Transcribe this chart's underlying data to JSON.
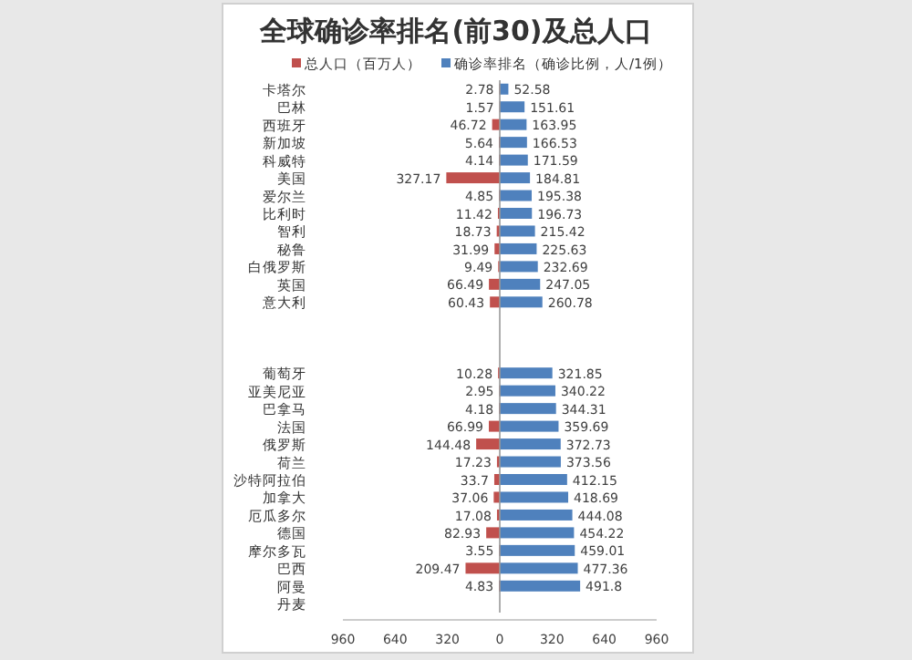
{
  "chart_data": {
    "type": "bar",
    "orientation": "horizontal",
    "title": "全球确诊率排名(前30)及总人口",
    "categories": [
      "卡塔尔",
      "巴林",
      "西班牙",
      "新加坡",
      "科威特",
      "美国",
      "爱尔兰",
      "比利时",
      "智利",
      "秘鲁",
      "白俄罗斯",
      "英国",
      "意大利",
      null,
      null,
      null,
      "葡萄牙",
      "亚美尼亚",
      "巴拿马",
      "法国",
      "俄罗斯",
      "荷兰",
      "沙特阿拉伯",
      "加拿大",
      "厄瓜多尔",
      "德国",
      "摩尔多瓦",
      "巴西",
      "阿曼",
      "丹麦"
    ],
    "series": [
      {
        "name": "总人口（百万人）",
        "color": "#c0504d",
        "axis": "x2",
        "values": [
          2.78,
          1.57,
          46.72,
          5.64,
          4.14,
          327.17,
          4.85,
          11.42,
          18.73,
          31.99,
          9.49,
          66.49,
          60.43,
          null,
          null,
          null,
          10.28,
          2.95,
          4.18,
          66.99,
          144.48,
          17.23,
          33.7,
          37.06,
          17.08,
          82.93,
          3.55,
          209.47,
          4.83,
          null
        ]
      },
      {
        "name": "确诊率排名（确诊比例，人/1例）",
        "color": "#4f81bd",
        "values": [
          52.58,
          151.61,
          163.95,
          166.53,
          171.59,
          184.81,
          195.38,
          196.73,
          215.42,
          225.63,
          232.69,
          247.05,
          260.78,
          null,
          null,
          null,
          321.85,
          340.22,
          344.31,
          359.69,
          372.73,
          373.56,
          412.15,
          418.69,
          444.08,
          454.22,
          459.01,
          477.36,
          491.8,
          null
        ]
      }
    ],
    "data_labels": true,
    "xlim": [
      -960,
      960
    ],
    "xticks": [
      0,
      320,
      640,
      960
    ],
    "x2lim": [
      960,
      -960
    ],
    "x2ticks": [
      960,
      640,
      320
    ],
    "ref_lines": [
      {
        "axis": "x",
        "value": 0,
        "color": "#999999"
      }
    ],
    "legend": "top"
  }
}
